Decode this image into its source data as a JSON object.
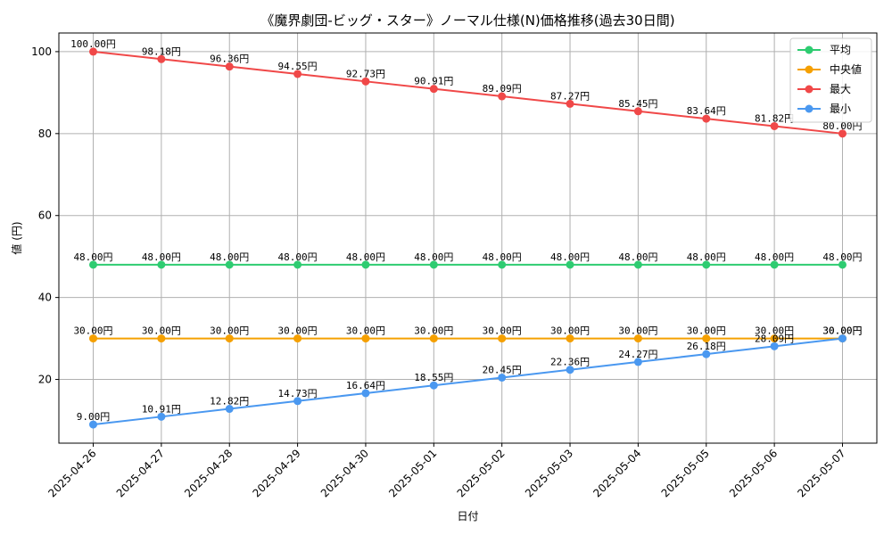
{
  "chart_data": {
    "type": "line",
    "title": "《魔界劇団-ビッグ・スター》ノーマル仕様(N)価格推移(過去30日間)",
    "xlabel": "日付",
    "ylabel": "値 (円)",
    "categories": [
      "2025-04-26",
      "2025-04-27",
      "2025-04-28",
      "2025-04-29",
      "2025-04-30",
      "2025-05-01",
      "2025-05-02",
      "2025-05-03",
      "2025-05-04",
      "2025-05-05",
      "2025-05-06",
      "2025-05-07"
    ],
    "ylim": [
      4.45,
      104.55
    ],
    "yticks": [
      20,
      40,
      60,
      80,
      100
    ],
    "grid": true,
    "legend_position": "top-right",
    "value_suffix": "円",
    "series": [
      {
        "name": "平均",
        "color": "#2ecc71",
        "values": [
          48,
          48,
          48,
          48,
          48,
          48,
          48,
          48,
          48,
          48,
          48,
          48
        ]
      },
      {
        "name": "中央値",
        "color": "#f5a000",
        "values": [
          30,
          30,
          30,
          30,
          30,
          30,
          30,
          30,
          30,
          30,
          30,
          30
        ]
      },
      {
        "name": "最大",
        "color": "#f04848",
        "values": [
          100.0,
          98.18,
          96.36,
          94.55,
          92.73,
          90.91,
          89.09,
          87.27,
          85.45,
          83.64,
          81.82,
          80.0
        ]
      },
      {
        "name": "最小",
        "color": "#4a98f0",
        "values": [
          9.0,
          10.91,
          12.82,
          14.73,
          16.64,
          18.55,
          20.45,
          22.36,
          24.27,
          26.18,
          28.09,
          30.0
        ]
      }
    ]
  }
}
